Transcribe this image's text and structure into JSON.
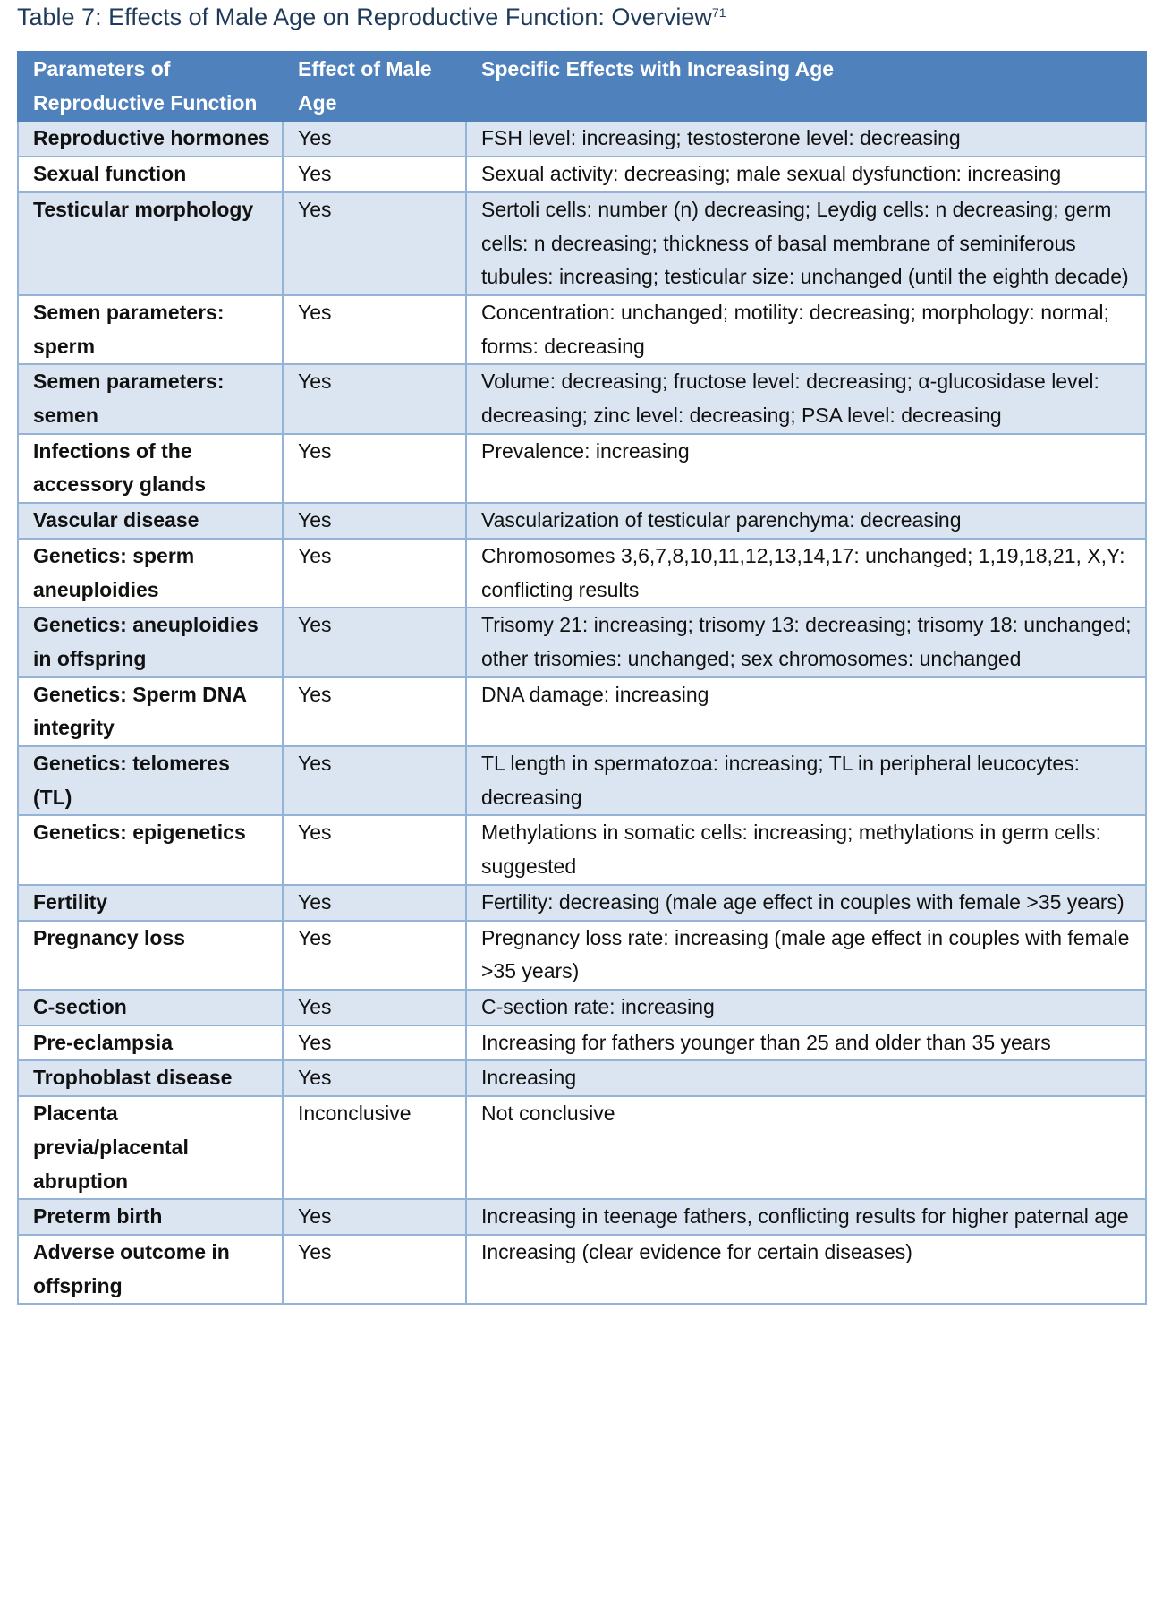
{
  "title": {
    "text": "Table 7: Effects of Male Age on Reproductive Function: Overview",
    "ref": "71"
  },
  "table": {
    "headers": [
      "Parameters of Reproductive Function",
      "Effect of Male Age",
      "Specific Effects with Increasing Age"
    ],
    "rows": [
      [
        "Reproductive hormones",
        "Yes",
        "FSH level: increasing; testosterone level: decreasing"
      ],
      [
        "Sexual function",
        "Yes",
        "Sexual activity: decreasing; male sexual dysfunction: increasing"
      ],
      [
        "Testicular morphology",
        "Yes",
        "Sertoli cells: number (n) decreasing; Leydig cells: n decreasing; germ cells: n decreasing; thickness of basal membrane of seminiferous tubules: increasing; testicular size: unchanged (until the eighth decade)"
      ],
      [
        "Semen parameters: sperm",
        "Yes",
        "Concentration: unchanged; motility: decreasing; morphology: normal; forms: decreasing"
      ],
      [
        "Semen parameters: semen",
        "Yes",
        "Volume: decreasing; fructose level: decreasing; α-glucosidase level: decreasing; zinc level: decreasing; PSA level: decreasing"
      ],
      [
        "Infections of the accessory glands",
        "Yes",
        "Prevalence: increasing"
      ],
      [
        "Vascular disease",
        "Yes",
        "Vascularization of testicular parenchyma: decreasing"
      ],
      [
        "Genetics: sperm aneuploidies",
        "Yes",
        "Chromosomes 3,6,7,8,10,11,12,13,14,17: unchanged; 1,19,18,21, X,Y: conflicting results"
      ],
      [
        "Genetics: aneuploidies in offspring",
        "Yes",
        "Trisomy 21: increasing; trisomy 13: decreasing; trisomy 18: unchanged; other trisomies: unchanged; sex chromosomes: unchanged"
      ],
      [
        "Genetics: Sperm DNA integrity",
        "Yes",
        "DNA damage: increasing"
      ],
      [
        "Genetics: telomeres (TL)",
        "Yes",
        "TL length in spermatozoa: increasing; TL in peripheral leucocytes: decreasing"
      ],
      [
        "Genetics: epigenetics",
        "Yes",
        "Methylations in somatic cells: increasing; methylations in germ cells: suggested"
      ],
      [
        "Fertility",
        "Yes",
        "Fertility: decreasing (male age effect in couples with female >35 years)"
      ],
      [
        "Pregnancy loss",
        "Yes",
        "Pregnancy loss rate: increasing (male age effect in couples with female >35 years)"
      ],
      [
        "C-section",
        "Yes",
        "C-section rate: increasing"
      ],
      [
        "Pre-eclampsia",
        "Yes",
        "Increasing for fathers younger than 25 and older than 35 years"
      ],
      [
        "Trophoblast disease",
        "Yes",
        "Increasing"
      ],
      [
        "Placenta previa/placental abruption",
        "Inconclusive",
        "Not conclusive"
      ],
      [
        "Preterm birth",
        "Yes",
        "Increasing in teenage fathers, conflicting results for higher paternal age"
      ],
      [
        "Adverse outcome in offspring",
        "Yes",
        "Increasing (clear evidence for certain diseases)"
      ]
    ]
  },
  "colors": {
    "header_bg": "#4f81bd",
    "band_bg": "#dbe5f1",
    "border": "#95b3d7",
    "title": "#1f3a5a"
  }
}
